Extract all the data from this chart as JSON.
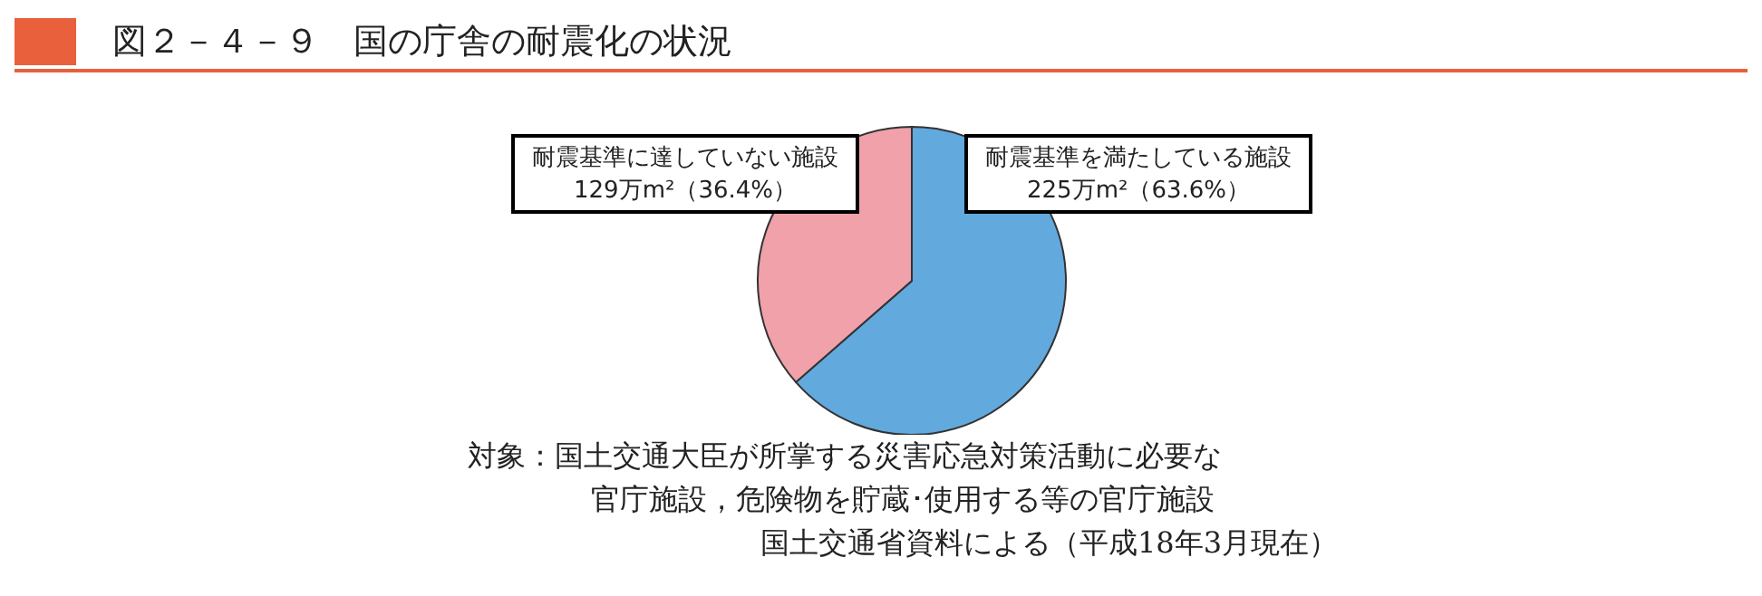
{
  "chart_data": {
    "type": "pie",
    "title": "図２－４－９　国の庁舎の耐震化の状況",
    "categories": [
      "耐震基準を満たしている施設",
      "耐震基準に達していない施設"
    ],
    "values": [
      225,
      129
    ],
    "colors": [
      "#62a9de",
      "#f0a1aa"
    ],
    "value_labels": [
      "225万m²（63.6%）",
      "129万m²（36.4%）"
    ],
    "annotations": [
      "対象：国土交通大臣が所掌する災害応急対策活動に必要な",
      "官庁施設，危険物を貯蔵･使用する等の官庁施設",
      "国土交通省資料による（平成18年3月現在）"
    ]
  }
}
